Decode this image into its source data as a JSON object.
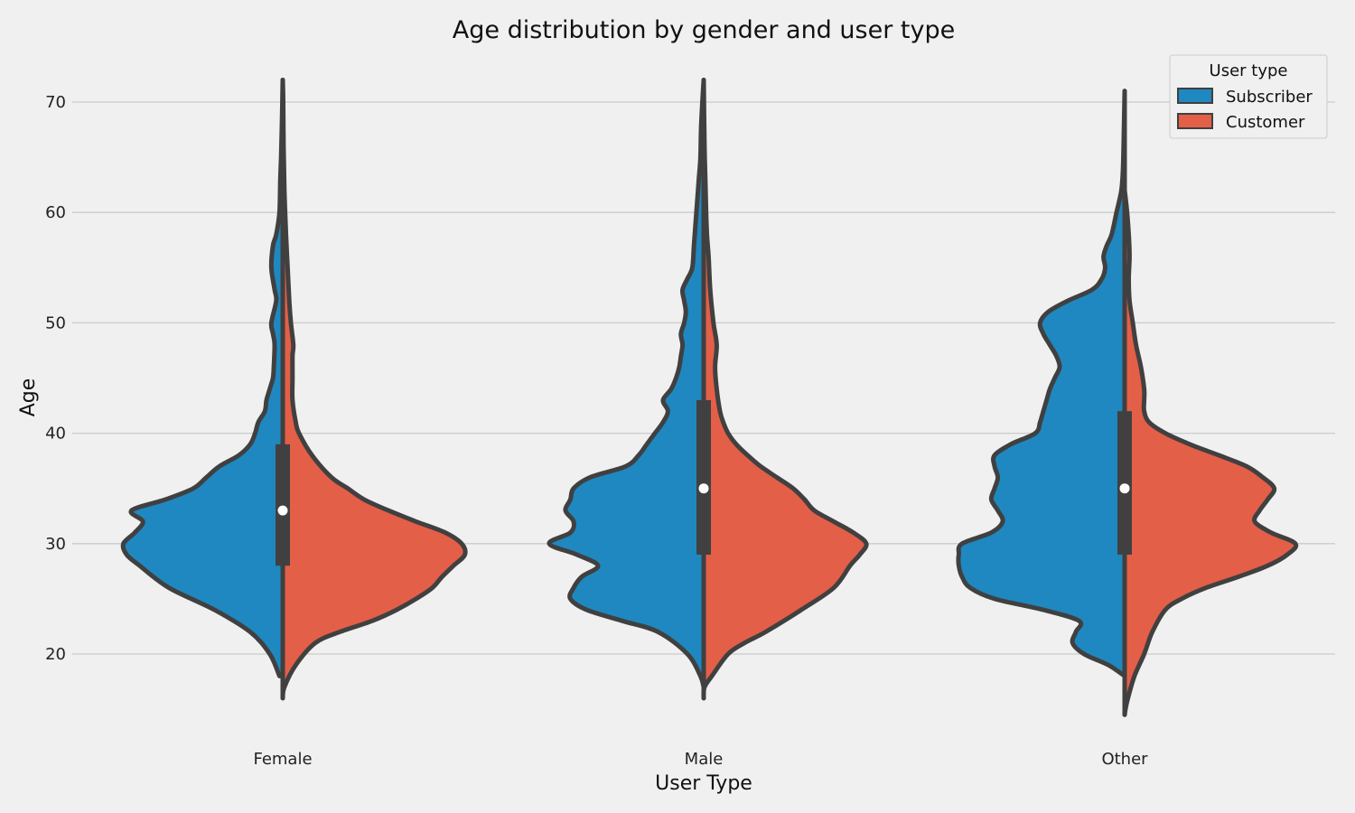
{
  "chart_data": {
    "type": "violin",
    "title": "Age distribution by gender and user type",
    "xlabel": "User Type",
    "ylabel": "Age",
    "ylim": [
      13,
      73
    ],
    "yticks": [
      20,
      30,
      40,
      50,
      60,
      70
    ],
    "grid": "horizontal",
    "legend": {
      "title": "User type",
      "placement": "top-right",
      "entries": [
        "Subscriber",
        "Customer"
      ]
    },
    "colors": {
      "Subscriber": "#1f88c0",
      "Customer": "#e45f47",
      "outline": "#404040",
      "background": "#f0f0f0",
      "grid": "#cbcbcb"
    },
    "categories": [
      "Female",
      "Male",
      "Other"
    ],
    "violins": [
      {
        "category": "Female",
        "median": 33,
        "q1": 28,
        "q3": 39,
        "Subscriber": {
          "min": 18,
          "max": 72,
          "profile": [
            [
              18,
              0.02
            ],
            [
              20,
              0.08
            ],
            [
              22,
              0.2
            ],
            [
              24,
              0.42
            ],
            [
              26,
              0.7
            ],
            [
              28,
              0.88
            ],
            [
              29,
              0.96
            ],
            [
              30,
              0.98
            ],
            [
              31,
              0.91
            ],
            [
              32,
              0.86
            ],
            [
              33,
              0.93
            ],
            [
              34,
              0.72
            ],
            [
              35,
              0.55
            ],
            [
              36,
              0.47
            ],
            [
              37,
              0.39
            ],
            [
              38,
              0.27
            ],
            [
              39,
              0.2
            ],
            [
              40,
              0.17
            ],
            [
              41,
              0.15
            ],
            [
              42,
              0.11
            ],
            [
              43,
              0.1
            ],
            [
              44,
              0.08
            ],
            [
              45,
              0.06
            ],
            [
              46,
              0.055
            ],
            [
              48,
              0.05
            ],
            [
              49,
              0.06
            ],
            [
              50,
              0.07
            ],
            [
              52,
              0.04
            ],
            [
              53,
              0.05
            ],
            [
              55,
              0.07
            ],
            [
              57,
              0.06
            ],
            [
              58,
              0.04
            ],
            [
              60,
              0.02
            ],
            [
              63,
              0.015
            ],
            [
              65,
              0.01
            ],
            [
              68,
              0.005
            ],
            [
              72,
              0
            ]
          ]
        },
        "Customer": {
          "min": 16,
          "max": 72,
          "profile": [
            [
              16,
              0
            ],
            [
              17,
              0.01
            ],
            [
              19,
              0.08
            ],
            [
              21,
              0.2
            ],
            [
              22,
              0.35
            ],
            [
              23,
              0.55
            ],
            [
              24,
              0.7
            ],
            [
              25,
              0.82
            ],
            [
              26,
              0.92
            ],
            [
              27,
              0.98
            ],
            [
              28,
              1.05
            ],
            [
              29,
              1.12
            ],
            [
              30,
              1.1
            ],
            [
              31,
              1.0
            ],
            [
              32,
              0.82
            ],
            [
              33,
              0.65
            ],
            [
              34,
              0.5
            ],
            [
              35,
              0.4
            ],
            [
              36,
              0.3
            ],
            [
              38,
              0.18
            ],
            [
              40,
              0.1
            ],
            [
              41,
              0.08
            ],
            [
              43,
              0.06
            ],
            [
              45,
              0.06
            ],
            [
              47,
              0.06
            ],
            [
              48,
              0.065
            ],
            [
              50,
              0.05
            ],
            [
              52,
              0.04
            ],
            [
              55,
              0.03
            ],
            [
              58,
              0.02
            ],
            [
              62,
              0.01
            ],
            [
              66,
              0.005
            ],
            [
              70,
              0.003
            ],
            [
              72,
              0
            ]
          ]
        }
      },
      {
        "category": "Male",
        "median": 35,
        "q1": 29,
        "q3": 43,
        "Subscriber": {
          "min": 17,
          "max": 72,
          "profile": [
            [
              17,
              0
            ],
            [
              18,
              0.02
            ],
            [
              20,
              0.1
            ],
            [
              22,
              0.28
            ],
            [
              23,
              0.5
            ],
            [
              24,
              0.72
            ],
            [
              25,
              0.82
            ],
            [
              26,
              0.8
            ],
            [
              27,
              0.75
            ],
            [
              28,
              0.65
            ],
            [
              29,
              0.78
            ],
            [
              30,
              0.95
            ],
            [
              31,
              0.82
            ],
            [
              32,
              0.8
            ],
            [
              33,
              0.85
            ],
            [
              34,
              0.82
            ],
            [
              35,
              0.8
            ],
            [
              36,
              0.7
            ],
            [
              37,
              0.48
            ],
            [
              38,
              0.4
            ],
            [
              39,
              0.35
            ],
            [
              40,
              0.3
            ],
            [
              41,
              0.25
            ],
            [
              42,
              0.22
            ],
            [
              43,
              0.25
            ],
            [
              44,
              0.2
            ],
            [
              45,
              0.17
            ],
            [
              46,
              0.15
            ],
            [
              47,
              0.14
            ],
            [
              48,
              0.13
            ],
            [
              49,
              0.14
            ],
            [
              50,
              0.12
            ],
            [
              51,
              0.11
            ],
            [
              52,
              0.12
            ],
            [
              53,
              0.13
            ],
            [
              54,
              0.1
            ],
            [
              55,
              0.07
            ],
            [
              57,
              0.06
            ],
            [
              59,
              0.05
            ],
            [
              61,
              0.04
            ],
            [
              63,
              0.03
            ],
            [
              65,
              0.02
            ],
            [
              68,
              0.015
            ],
            [
              72,
              0
            ]
          ]
        },
        "Customer": {
          "min": 16,
          "max": 72,
          "profile": [
            [
              16,
              0
            ],
            [
              17,
              0.005
            ],
            [
              18,
              0.05
            ],
            [
              20,
              0.15
            ],
            [
              21,
              0.25
            ],
            [
              22,
              0.38
            ],
            [
              24,
              0.6
            ],
            [
              26,
              0.8
            ],
            [
              28,
              0.9
            ],
            [
              29,
              0.96
            ],
            [
              30,
              1.0
            ],
            [
              31,
              0.92
            ],
            [
              32,
              0.8
            ],
            [
              33,
              0.68
            ],
            [
              34,
              0.62
            ],
            [
              35,
              0.55
            ],
            [
              36,
              0.45
            ],
            [
              37,
              0.35
            ],
            [
              38,
              0.27
            ],
            [
              39,
              0.2
            ],
            [
              40,
              0.15
            ],
            [
              41,
              0.12
            ],
            [
              42,
              0.1
            ],
            [
              44,
              0.08
            ],
            [
              46,
              0.07
            ],
            [
              48,
              0.08
            ],
            [
              50,
              0.06
            ],
            [
              53,
              0.04
            ],
            [
              56,
              0.03
            ],
            [
              58,
              0.02
            ],
            [
              60,
              0.015
            ],
            [
              63,
              0.01
            ],
            [
              66,
              0.005
            ],
            [
              72,
              0
            ]
          ]
        }
      },
      {
        "category": "Other",
        "median": 35,
        "q1": 29,
        "q3": 42,
        "Subscriber": {
          "min": 18,
          "max": 71,
          "profile": [
            [
              18,
              0
            ],
            [
              19,
              0.1
            ],
            [
              20,
              0.25
            ],
            [
              21,
              0.32
            ],
            [
              22,
              0.3
            ],
            [
              23,
              0.28
            ],
            [
              24,
              0.5
            ],
            [
              25,
              0.8
            ],
            [
              26,
              0.95
            ],
            [
              27,
              1.0
            ],
            [
              28,
              1.02
            ],
            [
              29,
              1.02
            ],
            [
              30,
              1.0
            ],
            [
              31,
              0.82
            ],
            [
              32,
              0.75
            ],
            [
              33,
              0.78
            ],
            [
              34,
              0.82
            ],
            [
              35,
              0.8
            ],
            [
              36,
              0.78
            ],
            [
              37,
              0.8
            ],
            [
              38,
              0.8
            ],
            [
              39,
              0.7
            ],
            [
              40,
              0.55
            ],
            [
              41,
              0.52
            ],
            [
              42,
              0.5
            ],
            [
              43,
              0.48
            ],
            [
              44,
              0.46
            ],
            [
              45,
              0.43
            ],
            [
              46,
              0.4
            ],
            [
              47,
              0.42
            ],
            [
              48,
              0.46
            ],
            [
              49,
              0.5
            ],
            [
              50,
              0.52
            ],
            [
              51,
              0.47
            ],
            [
              52,
              0.35
            ],
            [
              53,
              0.2
            ],
            [
              54,
              0.14
            ],
            [
              55,
              0.12
            ],
            [
              56,
              0.13
            ],
            [
              57,
              0.11
            ],
            [
              58,
              0.08
            ],
            [
              60,
              0.05
            ],
            [
              62,
              0.02
            ],
            [
              64,
              0.01
            ],
            [
              68,
              0.004
            ],
            [
              71,
              0
            ]
          ]
        },
        "Customer": {
          "min": 14.5,
          "max": 62,
          "profile": [
            [
              14.5,
              0
            ],
            [
              15,
              0.005
            ],
            [
              16,
              0.02
            ],
            [
              18,
              0.06
            ],
            [
              20,
              0.12
            ],
            [
              22,
              0.17
            ],
            [
              24,
              0.25
            ],
            [
              25,
              0.35
            ],
            [
              26,
              0.5
            ],
            [
              27,
              0.7
            ],
            [
              28,
              0.88
            ],
            [
              29,
              1.0
            ],
            [
              30,
              1.05
            ],
            [
              31,
              0.9
            ],
            [
              32,
              0.8
            ],
            [
              33,
              0.83
            ],
            [
              34,
              0.88
            ],
            [
              35,
              0.92
            ],
            [
              36,
              0.85
            ],
            [
              37,
              0.75
            ],
            [
              38,
              0.58
            ],
            [
              39,
              0.4
            ],
            [
              40,
              0.25
            ],
            [
              41,
              0.15
            ],
            [
              42,
              0.12
            ],
            [
              43,
              0.12
            ],
            [
              44,
              0.12
            ],
            [
              46,
              0.1
            ],
            [
              48,
              0.07
            ],
            [
              50,
              0.05
            ],
            [
              52,
              0.03
            ],
            [
              54,
              0.025
            ],
            [
              56,
              0.03
            ],
            [
              58,
              0.025
            ],
            [
              60,
              0.015
            ],
            [
              62,
              0
            ]
          ]
        }
      }
    ]
  }
}
